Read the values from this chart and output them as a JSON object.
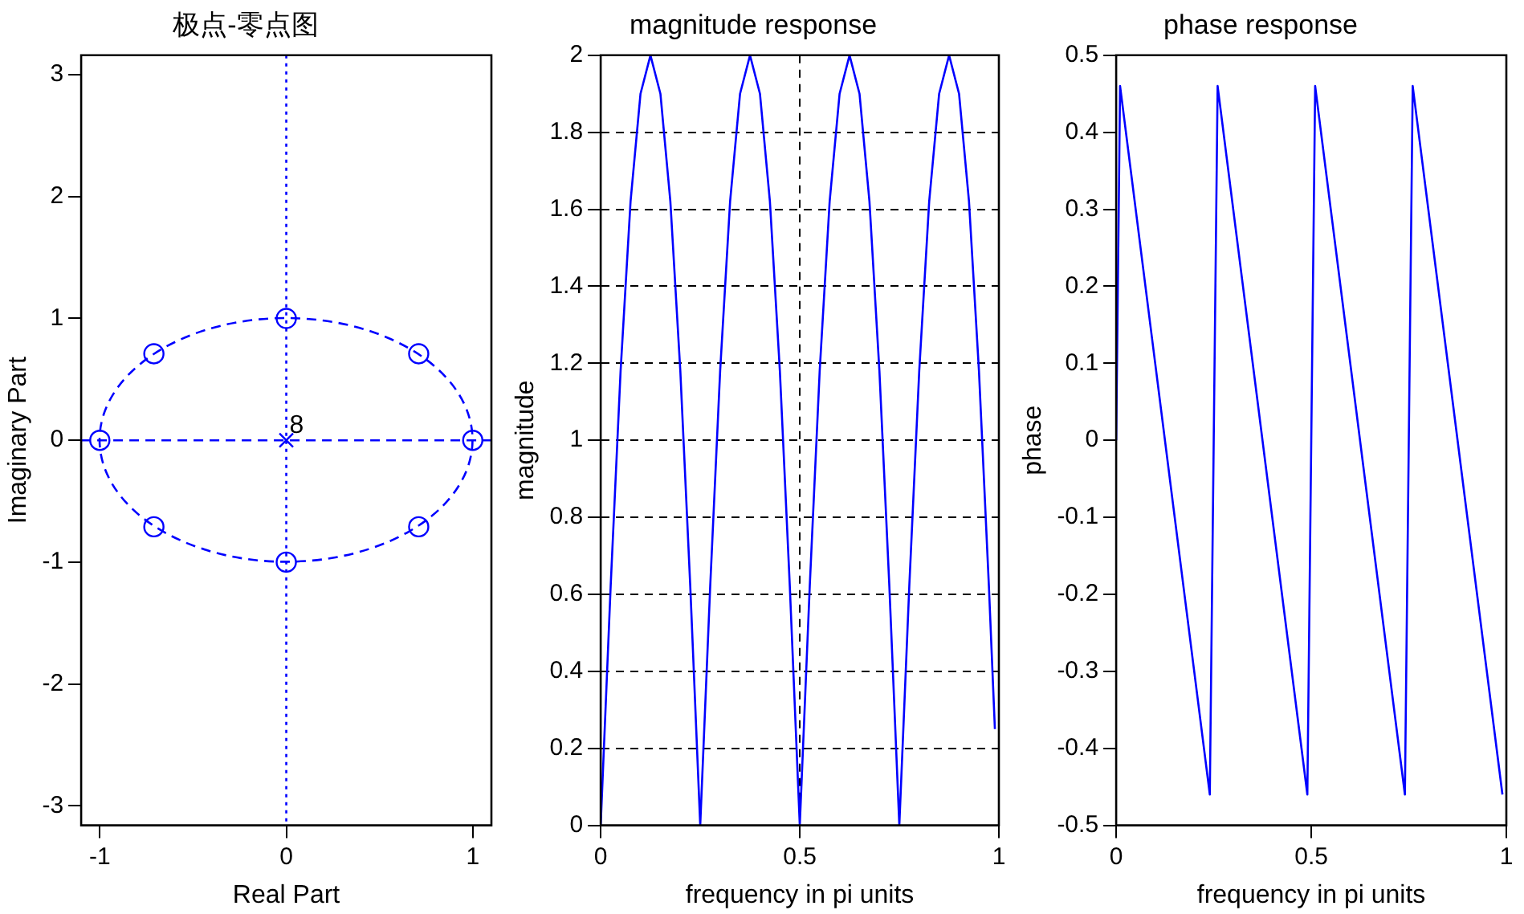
{
  "chart_data": [
    {
      "type": "scatter",
      "title": "极点-零点图",
      "xlabel": "Real Part",
      "ylabel": "Imaginary Part",
      "xlim": [
        -1.1,
        1.1
      ],
      "xticks": [
        -1,
        0,
        1
      ],
      "ylim": [
        -3.16,
        3.16
      ],
      "yticks": [
        -3,
        -2,
        -1,
        0,
        1,
        2,
        3
      ],
      "series": [
        {
          "type": "scatter",
          "color": "#0000ff",
          "marker": "circle",
          "x": [
            1,
            0.71,
            0,
            -0.71,
            -1,
            -0.71,
            0,
            0.71
          ],
          "values": [
            0,
            0.71,
            1,
            0.71,
            0,
            -0.71,
            -1,
            -0.71
          ]
        },
        {
          "type": "scatter",
          "color": "#0000ff",
          "marker": "cross",
          "x": [
            0
          ],
          "values": [
            0
          ]
        }
      ],
      "ref_lines": [
        {
          "axis": "x",
          "value": 0,
          "color": "#0000ff",
          "line_style": "dotted"
        },
        {
          "axis": "y",
          "value": 0,
          "color": "#0000ff",
          "line_style": "dashed"
        }
      ],
      "annotations": [
        {
          "text": "8",
          "x": 0,
          "y": 0
        }
      ]
    },
    {
      "type": "line",
      "title": "magnitude response",
      "xlabel": "frequency in pi units",
      "ylabel": "magnitude",
      "xlim": [
        0,
        1
      ],
      "xticks": [
        0,
        0.5,
        1
      ],
      "ylim": [
        0,
        2
      ],
      "yticks": [
        0,
        0.2,
        0.4,
        0.6,
        0.8,
        1,
        1.2,
        1.4,
        1.6,
        1.8,
        2
      ],
      "grid": true,
      "series": [
        {
          "color": "#0000ff",
          "x": [
            0,
            0.025,
            0.05,
            0.075,
            0.1,
            0.125,
            0.15,
            0.175,
            0.2,
            0.225,
            0.25,
            0.275,
            0.3,
            0.325,
            0.35,
            0.375,
            0.4,
            0.425,
            0.45,
            0.475,
            0.5,
            0.525,
            0.55,
            0.575,
            0.6,
            0.625,
            0.65,
            0.675,
            0.7,
            0.725,
            0.75,
            0.775,
            0.8,
            0.825,
            0.85,
            0.875,
            0.9,
            0.925,
            0.95,
            0.975,
            0.99
          ],
          "values": [
            0,
            0.62,
            1.18,
            1.62,
            1.9,
            2,
            1.9,
            1.62,
            1.18,
            0.62,
            0,
            0.62,
            1.18,
            1.62,
            1.9,
            2,
            1.9,
            1.62,
            1.18,
            0.62,
            0,
            0.62,
            1.18,
            1.62,
            1.9,
            2,
            1.9,
            1.62,
            1.18,
            0.62,
            0,
            0.62,
            1.18,
            1.62,
            1.9,
            2,
            1.9,
            1.62,
            1.18,
            0.62,
            0.25
          ]
        }
      ]
    },
    {
      "type": "line",
      "title": "phase response",
      "xlabel": "frequency in pi units",
      "ylabel": "phase",
      "xlim": [
        0,
        1
      ],
      "xticks": [
        0,
        0.5,
        1
      ],
      "ylim": [
        -0.5,
        0.5
      ],
      "yticks": [
        -0.5,
        -0.4,
        -0.3,
        -0.2,
        -0.1,
        0,
        0.1,
        0.2,
        0.3,
        0.4,
        0.5
      ],
      "series": [
        {
          "color": "#0000ff",
          "x": [
            0,
            0.01,
            0.05,
            0.1,
            0.15,
            0.2,
            0.24,
            0.25,
            0.26,
            0.3,
            0.35,
            0.4,
            0.45,
            0.49,
            0.5,
            0.51,
            0.55,
            0.6,
            0.65,
            0.7,
            0.74,
            0.75,
            0.76,
            0.8,
            0.85,
            0.9,
            0.95,
            0.99
          ],
          "values": [
            0,
            0.46,
            0.3,
            0.1,
            -0.1,
            -0.3,
            -0.46,
            0,
            0.46,
            0.3,
            0.1,
            -0.1,
            -0.3,
            -0.46,
            0,
            0.46,
            0.3,
            0.1,
            -0.1,
            -0.3,
            -0.46,
            0,
            0.46,
            0.3,
            0.1,
            -0.1,
            -0.3,
            -0.46
          ]
        }
      ]
    }
  ]
}
